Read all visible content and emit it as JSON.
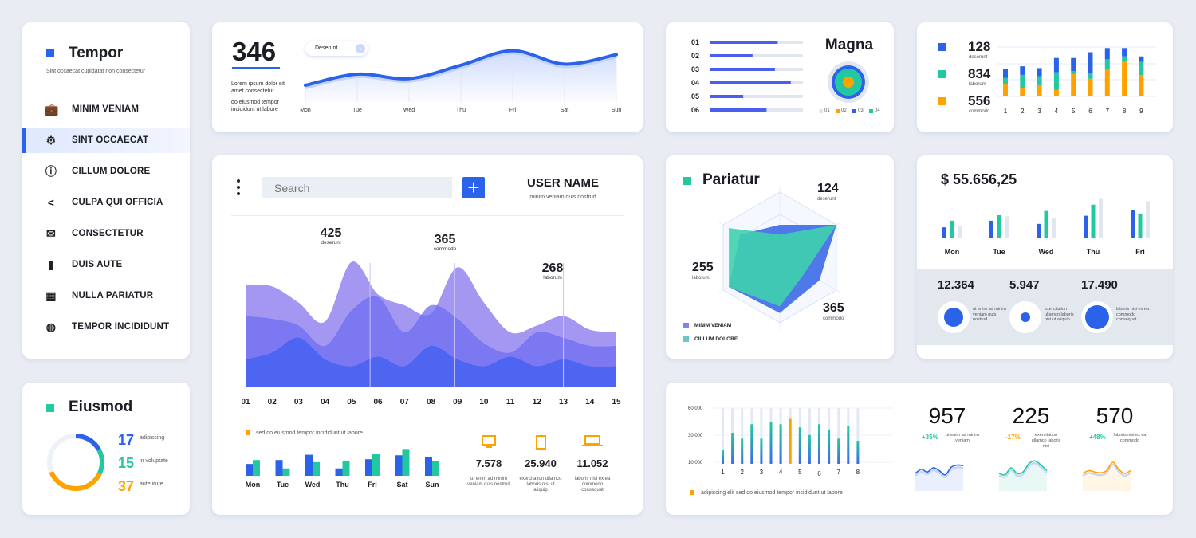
{
  "colors": {
    "blue": "#2a62ea",
    "teal": "#22c9a0",
    "orange": "#ffa200",
    "gray": "#e2e7ef",
    "purple": "#9a8cf0"
  },
  "sidebar": {
    "title": "Tempor",
    "subtitle": "Sint occaecat cupidatat non consectetur",
    "items": [
      {
        "label": "MINIM VENIAM",
        "icon": "briefcase-icon"
      },
      {
        "label": "SINT OCCAECAT",
        "icon": "gear-icon",
        "active": true
      },
      {
        "label": "CILLUM DOLORE",
        "icon": "info-icon"
      },
      {
        "label": "CULPA QUI OFFICIA",
        "icon": "share-icon"
      },
      {
        "label": "CONSECTETUR",
        "icon": "mail-icon"
      },
      {
        "label": "DUIS AUTE",
        "icon": "bar-chart-icon"
      },
      {
        "label": "NULLA PARIATUR",
        "icon": "calculator-icon"
      },
      {
        "label": "TEMPOR INCIDIDUNT",
        "icon": "globe-icon"
      }
    ]
  },
  "eiusmod": {
    "title": "Eiusmod",
    "stats": [
      {
        "value": "17",
        "label": "adipiscing",
        "color": "#2a62ea"
      },
      {
        "value": "15",
        "label": "in voluptate",
        "color": "#22c9a0"
      },
      {
        "value": "37",
        "label": "aute irure",
        "color": "#ffa200"
      }
    ]
  },
  "line_card": {
    "value": "346",
    "text1": "Lorem ipsum dolor sit amet consectetur",
    "text2": "do eiusmod tempor incididunt ut labore",
    "pill": "Deserunt"
  },
  "main": {
    "search_placeholder": "Search",
    "user_name": "USER NAME",
    "user_sub": "minim veniam quis nostrud",
    "annotations": [
      {
        "value": "425",
        "label": "deserunt"
      },
      {
        "value": "365",
        "label": "commodo"
      },
      {
        "value": "268",
        "label": "laborum"
      }
    ],
    "legend": "sed do eiusmod tempor incididunt ut labore",
    "devices": [
      {
        "icon": "monitor-icon",
        "value": "7.578",
        "text": "ut enim ad minim veniam quis nostrud"
      },
      {
        "icon": "tablet-icon",
        "value": "25.940",
        "text": "exercitation ullamco laboris nisi ut aliquip"
      },
      {
        "icon": "laptop-icon",
        "value": "11.052",
        "text": "laboris nisi ex ea commodo consequat"
      }
    ]
  },
  "magna": {
    "title": "Magna",
    "legend": [
      "01",
      "02",
      "03",
      "04"
    ]
  },
  "stacked": {
    "stats": [
      {
        "value": "128",
        "label": "deserunt"
      },
      {
        "value": "834",
        "label": "laborum"
      },
      {
        "value": "556",
        "label": "commodo"
      }
    ]
  },
  "pariatur": {
    "title": "Pariatur",
    "labels": [
      {
        "value": "124",
        "label": "deserunt"
      },
      {
        "value": "255",
        "label": "laborum"
      },
      {
        "value": "365",
        "label": "commodo"
      }
    ],
    "legend": [
      "MINIM VENIAM",
      "CILLUM DOLORE"
    ]
  },
  "money": {
    "total": "$ 55.656,25",
    "stats": [
      {
        "value": "12.364",
        "text": "ut enim ad minim veniam quis nostrud",
        "fill": 0.6
      },
      {
        "value": "5.947",
        "text": "exercitation ullamco laboris nisi ut aliquip",
        "fill": 0.3
      },
      {
        "value": "17.490",
        "text": "laboris nisi ex ea commodo consequat",
        "fill": 0.75
      }
    ]
  },
  "bottom": {
    "legend": "adipiscing elit sed do eiusmod tempor incididunt ut labore",
    "stats": [
      {
        "value": "957",
        "change": "+35%",
        "change_color": "#22c9a0",
        "text": "ut enim ad minim veniam",
        "line_color": "#2a62ea",
        "spark": [
          40,
          55,
          45,
          60,
          50,
          35,
          62,
          70,
          68
        ]
      },
      {
        "value": "225",
        "change": "-17%",
        "change_color": "#ffa200",
        "text": "exercitation ullamco laboris nisi",
        "line_color": "#22c9a0",
        "spark": [
          40,
          35,
          60,
          40,
          45,
          75,
          85,
          70,
          50
        ]
      },
      {
        "value": "570",
        "change": "+48%",
        "change_color": "#22c9a0",
        "text": "laboris nisi ex ea commodo",
        "line_color": "#ffa200",
        "spark": [
          40,
          50,
          45,
          42,
          50,
          80,
          55,
          40,
          50
        ]
      }
    ]
  },
  "chart_data": [
    {
      "type": "line",
      "id": "weekly-line",
      "categories": [
        "Mon",
        "Tue",
        "Wed",
        "Thu",
        "Fri",
        "Sat",
        "Sun"
      ],
      "values": [
        30,
        50,
        42,
        66,
        92,
        68,
        85
      ]
    },
    {
      "type": "bar",
      "id": "magna-progress",
      "categories": [
        "01",
        "02",
        "03",
        "04",
        "05",
        "06"
      ],
      "values": [
        0.73,
        0.46,
        0.7,
        0.87,
        0.36,
        0.61
      ],
      "ylim": [
        0,
        1
      ]
    },
    {
      "type": "bar",
      "id": "stacked-bars",
      "stacked": true,
      "categories": [
        "1",
        "2",
        "3",
        "4",
        "5",
        "6",
        "7",
        "8",
        "9"
      ],
      "series": [
        {
          "values": [
            48,
            33,
            43,
            26,
            86,
            68,
            106,
            135,
            82
          ],
          "color": "#ffa200"
        },
        {
          "values": [
            23,
            50,
            35,
            67,
            12,
            23,
            37,
            19,
            51
          ],
          "color": "#22c9a0"
        },
        {
          "values": [
            34,
            33,
            31,
            55,
            50,
            79,
            43,
            32,
            21
          ],
          "color": "#2a62ea"
        }
      ]
    },
    {
      "type": "area",
      "id": "main-area",
      "categories": [
        "01",
        "02",
        "03",
        "04",
        "05",
        "06",
        "07",
        "08",
        "09",
        "10",
        "11",
        "12",
        "13",
        "14",
        "15"
      ],
      "series": [
        {
          "values": [
            75,
            74,
            62,
            48,
            92,
            68,
            60,
            54,
            88,
            62,
            40,
            45,
            52,
            42,
            40
          ],
          "color": "#9a8cf0"
        },
        {
          "values": [
            52,
            50,
            45,
            30,
            56,
            66,
            40,
            60,
            50,
            32,
            25,
            40,
            36,
            30,
            30
          ],
          "color": "#6f6df0"
        },
        {
          "values": [
            20,
            25,
            36,
            20,
            15,
            22,
            15,
            30,
            20,
            15,
            22,
            15,
            20,
            15,
            15
          ],
          "color": "#3d5ff0"
        }
      ],
      "ylim": [
        0,
        100
      ]
    },
    {
      "type": "bar",
      "id": "main-weekly-bars",
      "categories": [
        "Mon",
        "Tue",
        "Wed",
        "Thu",
        "Fri",
        "Sat",
        "Sun"
      ],
      "series": [
        {
          "values": [
            45,
            60,
            80,
            28,
            63,
            78,
            70
          ],
          "color": "#2a62ea"
        },
        {
          "values": [
            60,
            28,
            52,
            55,
            85,
            102,
            55
          ],
          "color": "#22c9a0"
        }
      ]
    },
    {
      "type": "radar",
      "id": "pariatur-radar",
      "series": [
        {
          "name": "MINIM VENIAM",
          "values": [
            0.5,
            1.0,
            0.7,
            0.85,
            0.9,
            0.7
          ],
          "color": "#3d6ae8"
        },
        {
          "name": "CILLUM DOLORE",
          "values": [
            0.35,
            1.0,
            0.45,
            0.75,
            0.9,
            0.9
          ],
          "color": "#3fd0ae"
        }
      ]
    },
    {
      "type": "bar",
      "id": "money-bars",
      "categories": [
        "Mon",
        "Tue",
        "Wed",
        "Thu",
        "Fri"
      ],
      "series": [
        {
          "values": [
            42,
            67,
            55,
            86,
            107
          ],
          "color": "#2a62ea"
        },
        {
          "values": [
            67,
            88,
            104,
            128,
            91
          ],
          "color": "#22c9a0"
        },
        {
          "values": [
            48,
            84,
            77,
            150,
            141
          ],
          "color": "#e2e7ef"
        }
      ]
    },
    {
      "type": "bar",
      "id": "bottom-bars",
      "x_labels": [
        "1",
        "2",
        "3",
        "4",
        "5",
        "6",
        "7",
        "8"
      ],
      "yticks": [
        "60 000",
        "30 000",
        "10 000"
      ],
      "ylim": [
        10000,
        60000
      ],
      "values": [
        21100,
        37200,
        31800,
        45100,
        31800,
        47100,
        45100,
        50000,
        42200,
        35200,
        45100,
        40200,
        31800,
        43400,
        29800
      ],
      "highlight_index": 7
    },
    {
      "type": "pie",
      "id": "eiusmod-donut",
      "values": [
        17,
        15,
        37
      ]
    }
  ]
}
